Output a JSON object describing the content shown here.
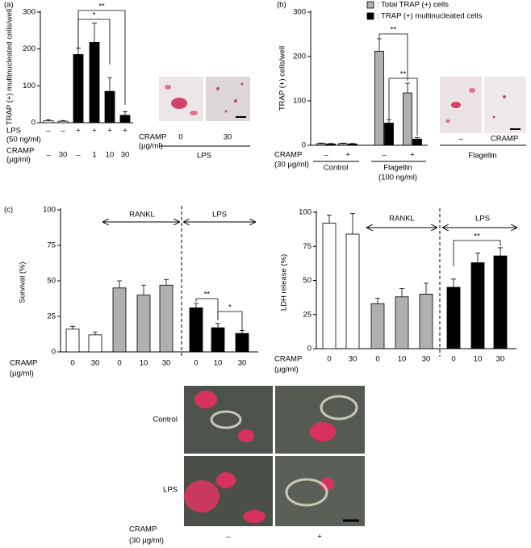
{
  "chart_data": [
    {
      "type": "bar",
      "panel_label": "(a)",
      "y_label": "TRAP (+) multinucleated cells/well",
      "values": [
        5,
        4,
        185,
        218,
        85,
        20
      ],
      "errors": [
        3,
        2,
        17,
        52,
        37,
        10
      ],
      "colors": [
        "#ffffff",
        "#ffffff",
        "#000000",
        "#000000",
        "#000000",
        "#000000"
      ],
      "ylim": [
        0,
        300
      ],
      "yticks": [
        0,
        100,
        200,
        300
      ],
      "conditions": [
        {
          "label": "LPS",
          "unit": "(50 ng/ml)",
          "values": [
            "–",
            "–",
            "+",
            "+",
            "+",
            "+"
          ]
        },
        {
          "label": "CRAMP",
          "unit": "(µg/ml)",
          "values": [
            "–",
            "30",
            "–",
            "1",
            "10",
            "30"
          ]
        }
      ],
      "significance": [
        "*",
        "**"
      ],
      "inset": {
        "label": "CRAMP",
        "unit": "(µg/ml)",
        "columns": [
          "0",
          "30"
        ],
        "caption": "LPS"
      }
    },
    {
      "type": "bar",
      "panel_label": "(b)",
      "y_label": "TRAP (+) cells/well",
      "categories": [
        "–",
        "+",
        "–",
        "+"
      ],
      "x_label": "CRAMP",
      "x_unit": "(30 µg/ml)",
      "groups": [
        "Control",
        "Flagellin"
      ],
      "group_note": "(100 ng/ml)",
      "series": [
        {
          "name": ": Total TRAP (+) cells",
          "color": "#b0b0b0",
          "values": [
            4,
            4,
            212,
            118
          ],
          "errors": [
            1,
            1,
            28,
            22
          ]
        },
        {
          "name": ": TRAP (+) multinucleated cells",
          "color": "#000000",
          "values": [
            3,
            3,
            50,
            14
          ],
          "errors": [
            1,
            1,
            8,
            3
          ]
        }
      ],
      "ylim": [
        0,
        300
      ],
      "yticks": [
        0,
        100,
        200,
        300
      ],
      "significance": [
        "**",
        "**"
      ],
      "inset": {
        "columns": [
          "–",
          "CRAMP"
        ],
        "caption": "Flagellin"
      }
    },
    {
      "type": "bar",
      "panel_label": "(c)",
      "y_label": "Survival (%)",
      "categories": [
        "0",
        "30",
        "0",
        "10",
        "30",
        "0",
        "10",
        "30"
      ],
      "x_label": "CRAMP",
      "x_unit": "(µg/ml)",
      "values": [
        16,
        12,
        45,
        40,
        47,
        31,
        17,
        13
      ],
      "errors": [
        2,
        2,
        5,
        7,
        4,
        3,
        3,
        2
      ],
      "colors": [
        "#ffffff",
        "#ffffff",
        "#b0b0b0",
        "#b0b0b0",
        "#b0b0b0",
        "#000000",
        "#000000",
        "#000000"
      ],
      "ylim": [
        0,
        100
      ],
      "yticks": [
        0,
        25,
        50,
        75,
        100
      ],
      "annotations": [
        "RANKL",
        "LPS"
      ],
      "significance": [
        "**",
        "*"
      ]
    },
    {
      "type": "bar",
      "y_label": "LDH release (%)",
      "categories": [
        "0",
        "30",
        "0",
        "10",
        "30",
        "0",
        "10",
        "30"
      ],
      "x_label": "CRAMP",
      "x_unit": "(µg/ml)",
      "values": [
        92,
        84,
        33,
        38,
        40,
        45,
        63,
        68
      ],
      "errors": [
        6,
        15,
        4,
        6,
        8,
        6,
        7,
        6
      ],
      "colors": [
        "#ffffff",
        "#ffffff",
        "#b0b0b0",
        "#b0b0b0",
        "#b0b0b0",
        "#000000",
        "#000000",
        "#000000"
      ],
      "ylim": [
        0,
        100
      ],
      "yticks": [
        0,
        25,
        50,
        75,
        100
      ],
      "annotations": [
        "RANKL",
        "LPS"
      ],
      "significance": [
        "**"
      ]
    }
  ],
  "micrographs": {
    "rows": [
      "Control",
      "LPS"
    ],
    "label": "CRAMP",
    "unit": "(30 µg/ml)",
    "columns": [
      "–",
      "+"
    ]
  }
}
